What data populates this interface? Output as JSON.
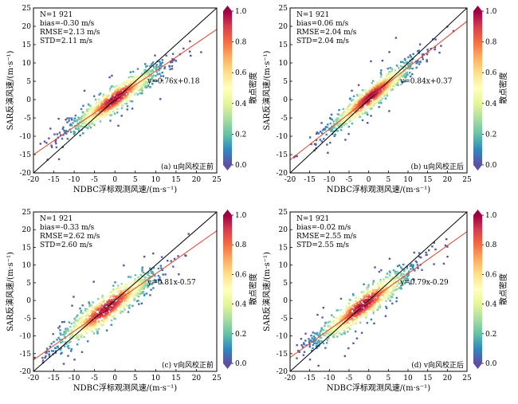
{
  "chart_data": [
    {
      "type": "scatter",
      "panel_label": "(a) u向风校正前",
      "stats": {
        "n": "N=1 921",
        "bias": "bias=-0.30 m/s",
        "rmse": "RMSE=2.13 m/s",
        "std": "STD=2.11 m/s"
      },
      "fit": {
        "slope": 0.76,
        "intercept": 0.18,
        "label": "y=0.76x+0.18",
        "label_at": [
          8,
          4.5
        ]
      },
      "spread": 1.55,
      "center": 0,
      "extent": 9,
      "xlabel": "NDBC浮标观测风速/(m·s⁻¹)",
      "ylabel": "SAR反演风速/(m·s⁻¹)",
      "xlim": [
        -20,
        25
      ],
      "ylim": [
        -20,
        25
      ],
      "xticks": [
        -20,
        -15,
        -10,
        -5,
        0,
        5,
        10,
        15,
        20,
        25
      ],
      "yticks": [
        -20,
        -15,
        -10,
        -5,
        0,
        5,
        10,
        15,
        20,
        25
      ],
      "colorbar": {
        "label": "散点密度",
        "ticks": [
          0.0,
          0.2,
          0.4,
          0.6,
          0.8,
          1.0
        ]
      }
    },
    {
      "type": "scatter",
      "panel_label": "(b) u向风校正后",
      "stats": {
        "n": "N=1 921",
        "bias": "bias=0.06 m/s",
        "rmse": "RMSE=2.04 m/s",
        "std": "STD=2.04 m/s"
      },
      "fit": {
        "slope": 0.84,
        "intercept": 0.37,
        "label": "y=0.84x+0.37",
        "label_at": [
          8,
          4.5
        ]
      },
      "spread": 1.45,
      "center": 0.5,
      "extent": 9,
      "xlabel": "NDBC浮标观测风速/(m·s⁻¹)",
      "ylabel": "SAR反演风速/(m·s⁻¹)",
      "xlim": [
        -20,
        25
      ],
      "ylim": [
        -20,
        25
      ],
      "xticks": [
        -20,
        -15,
        -10,
        -5,
        0,
        5,
        10,
        15,
        20,
        25
      ],
      "yticks": [
        -20,
        -15,
        -10,
        -5,
        0,
        5,
        10,
        15,
        20,
        25
      ],
      "colorbar": {
        "label": "散点密度",
        "ticks": [
          0.0,
          0.2,
          0.4,
          0.6,
          0.8,
          1.0
        ]
      }
    },
    {
      "type": "scatter",
      "panel_label": "(c) v向风校正前",
      "stats": {
        "n": "N=1 921",
        "bias": "bias=-0.33 m/s",
        "rmse": "RMSE=2.62 m/s",
        "std": "STD=2.60 m/s"
      },
      "fit": {
        "slope": 0.81,
        "intercept": -0.57,
        "label": "y=0.81x-0.57",
        "label_at": [
          8,
          4.5
        ]
      },
      "spread": 1.9,
      "center": -2,
      "extent": 10,
      "xlabel": "NDBC浮标观测风速/(m·s⁻¹)",
      "ylabel": "SAR反演风速/(m·s⁻¹)",
      "xlim": [
        -20,
        25
      ],
      "ylim": [
        -20,
        25
      ],
      "xticks": [
        -20,
        -15,
        -10,
        -5,
        0,
        5,
        10,
        15,
        20,
        25
      ],
      "yticks": [
        -20,
        -15,
        -10,
        -5,
        0,
        5,
        10,
        15,
        20,
        25
      ],
      "colorbar": {
        "label": "散点密度",
        "ticks": [
          0.0,
          0.2,
          0.4,
          0.6,
          0.8,
          1.0
        ]
      }
    },
    {
      "type": "scatter",
      "panel_label": "(d) v向风校正后",
      "stats": {
        "n": "N=1 921",
        "bias": "bias=-0.02 m/s",
        "rmse": "RMSE=2.55 m/s",
        "std": "STD=2.55 m/s"
      },
      "fit": {
        "slope": 0.79,
        "intercept": -0.29,
        "label": "y=0.79x-0.29",
        "label_at": [
          8,
          4.5
        ]
      },
      "spread": 1.85,
      "center": -1.5,
      "extent": 10,
      "xlabel": "NDBC浮标观测风速/(m·s⁻¹)",
      "ylabel": "SAR反演风速/(m·s⁻¹)",
      "xlim": [
        -20,
        25
      ],
      "ylim": [
        -20,
        25
      ],
      "xticks": [
        -20,
        -15,
        -10,
        -5,
        0,
        5,
        10,
        15,
        20,
        25
      ],
      "yticks": [
        -20,
        -15,
        -10,
        -5,
        0,
        5,
        10,
        15,
        20,
        25
      ],
      "colorbar": {
        "label": "散点密度",
        "ticks": [
          0.0,
          0.2,
          0.4,
          0.6,
          0.8,
          1.0
        ]
      }
    }
  ],
  "colors": {
    "fit_line": "#e8402a",
    "identity_line": "#000000",
    "colormap": [
      "#5e4fa2",
      "#3288bd",
      "#66c2a5",
      "#abdda4",
      "#e6f598",
      "#ffffbf",
      "#fee08b",
      "#fdae61",
      "#f46d43",
      "#d53e4f",
      "#9e0142"
    ]
  }
}
